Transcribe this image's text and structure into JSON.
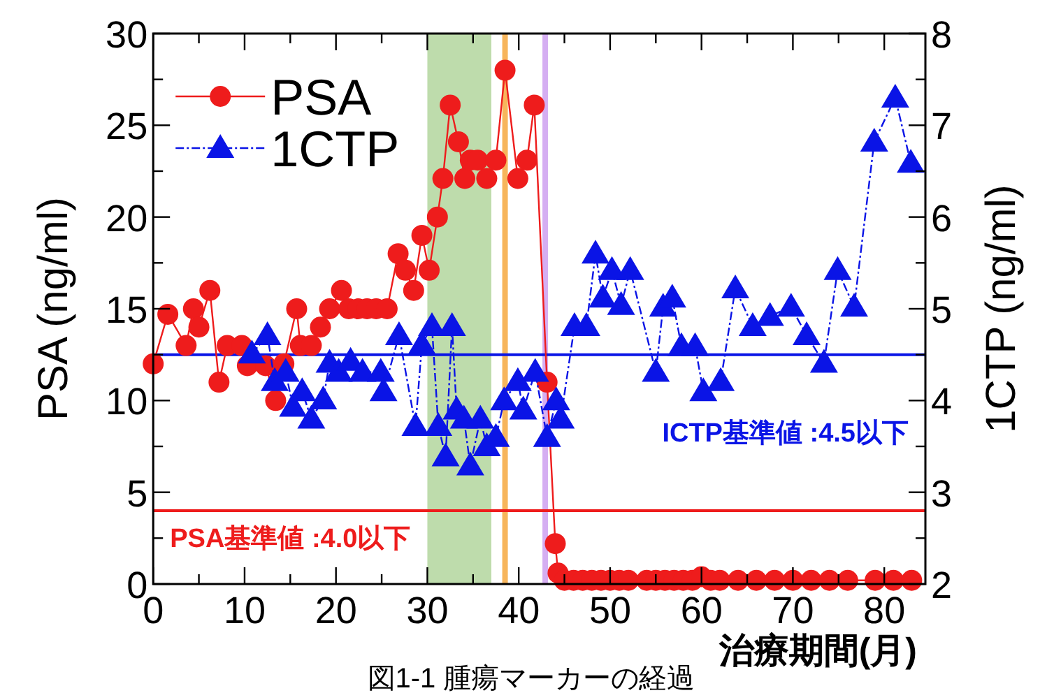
{
  "chart_data": {
    "type": "line",
    "xlabel": "治療期間(月)",
    "ylabel": "PSA (ng/ml)",
    "y2label": "1CTP (ng/ml)",
    "annotations": [
      "図1-1 腫瘍マーカーの経過"
    ],
    "xlim": [
      0,
      84.5
    ],
    "xticks": [
      0,
      {
        "value": 5,
        "label": null
      },
      10,
      {
        "value": 15,
        "label": null
      },
      20,
      {
        "value": 25,
        "label": null
      },
      30,
      {
        "value": 35,
        "label": null
      },
      40,
      {
        "value": 45,
        "label": null
      },
      50,
      {
        "value": 55,
        "label": null
      },
      60,
      {
        "value": 65,
        "label": null
      },
      70,
      {
        "value": 75,
        "label": null
      },
      80
    ],
    "ylim": [
      0,
      30
    ],
    "yticks": [
      0,
      {
        "value": 2.5,
        "label": null
      },
      5,
      {
        "value": 7.5,
        "label": null
      },
      10,
      {
        "value": 12.5,
        "label": null
      },
      15,
      {
        "value": 17.5,
        "label": null
      },
      20,
      {
        "value": 22.5,
        "label": null
      },
      25,
      {
        "value": 27.5,
        "label": null
      },
      30
    ],
    "y2lim": [
      2,
      8
    ],
    "y2ticks": [
      2,
      {
        "value": 2.5,
        "label": null
      },
      3,
      {
        "value": 3.5,
        "label": null
      },
      4,
      {
        "value": 4.5,
        "label": null
      },
      5,
      {
        "value": 5.5,
        "label": null
      },
      6,
      {
        "value": 6.5,
        "label": null
      },
      7,
      {
        "value": 7.5,
        "label": null
      },
      8
    ],
    "legend": "top left",
    "series": [
      {
        "name": "PSA",
        "color": "#ee1c1c",
        "marker": "circle",
        "line_style": "solid",
        "x": [
          0,
          1.6,
          3.6,
          4.4,
          5,
          6.2,
          7.2,
          8.1,
          9.7,
          10.3,
          12.3,
          13.4,
          14.3,
          15.7,
          16.1,
          17.3,
          18.3,
          19.3,
          20.6,
          21.4,
          22.4,
          23.4,
          24.4,
          25.6,
          26.8,
          27.6,
          28.5,
          29.4,
          30.2,
          31.1,
          31.7,
          32.5,
          33.4,
          34.1,
          34.7,
          35.5,
          36.5,
          37.5,
          38.5,
          39.9,
          40.9,
          41.7,
          43.1,
          44,
          44.3,
          45,
          46,
          47,
          48,
          49,
          50,
          51,
          52,
          54,
          55,
          56,
          57,
          58,
          59,
          60,
          61,
          62,
          64,
          66,
          68,
          70,
          72,
          74,
          76,
          79,
          81,
          83
        ],
        "values": [
          12,
          14.7,
          13,
          15,
          14,
          16,
          11,
          13,
          13,
          11.9,
          11.9,
          10,
          12,
          15,
          13,
          13,
          14,
          15,
          16,
          15,
          15,
          15,
          15,
          15,
          18,
          17.1,
          16,
          19,
          17.1,
          20,
          22.1,
          26.1,
          24.1,
          22.1,
          23.1,
          23.1,
          22.1,
          23.1,
          28,
          22.1,
          23.1,
          26.1,
          11,
          2.2,
          0.6,
          0.2,
          0.2,
          0.2,
          0.2,
          0.2,
          0.2,
          0.2,
          0.2,
          0.2,
          0.2,
          0.2,
          0.2,
          0.2,
          0.2,
          0.4,
          0.2,
          0.2,
          0.2,
          0.2,
          0.2,
          0.2,
          0.2,
          0.2,
          0.2,
          0.2,
          0.2,
          0.2
        ]
      },
      {
        "name": "1CTP",
        "color": "#0a14e6",
        "marker": "triangle",
        "line_style": "dashed",
        "axis": "y2",
        "x": [
          10.8,
          12.5,
          13.3,
          14.5,
          15.3,
          16.3,
          17.3,
          18.6,
          19.3,
          20.3,
          21.6,
          22.9,
          24.9,
          25.2,
          26.9,
          28.7,
          29.4,
          30.5,
          31.2,
          32,
          32.7,
          33.2,
          34,
          34.7,
          35.8,
          36.5,
          37.5,
          38.4,
          39.9,
          40.5,
          41.8,
          43.1,
          44.1,
          44.6,
          46.1,
          47.4,
          48.4,
          49.2,
          50.2,
          51.2,
          52.2,
          55,
          55.8,
          56.8,
          57.8,
          59.3,
          60.2,
          62.1,
          63.7,
          65.6,
          67.5,
          69.8,
          71.5,
          73.4,
          74.9,
          76.7,
          78.9,
          81.2,
          82.9
        ],
        "values": [
          4.51,
          4.71,
          4.21,
          4.31,
          3.93,
          4.1,
          3.8,
          4.01,
          4.41,
          4.31,
          4.43,
          4.31,
          4.31,
          4.1,
          4.71,
          3.72,
          4.61,
          4.81,
          3.72,
          3.39,
          4.81,
          3.9,
          3.8,
          3.29,
          3.8,
          3.5,
          3.6,
          4,
          4.21,
          3.9,
          4.31,
          3.6,
          4,
          3.8,
          4.81,
          4.81,
          5.6,
          5.12,
          5.42,
          5.04,
          5.42,
          4.31,
          5.02,
          5.12,
          4.59,
          4.59,
          4.1,
          4.21,
          5.22,
          4.81,
          4.92,
          5.02,
          4.71,
          4.41,
          5.42,
          5.02,
          6.82,
          7.3,
          6.59
        ]
      }
    ],
    "bands": [
      {
        "axis": "x",
        "from": 30,
        "to": 37,
        "color": "#b3d69e"
      }
    ],
    "ref_lines": [
      {
        "axis": "x",
        "value": 38.5,
        "color": "#f7b55c"
      },
      {
        "axis": "x",
        "value": 42.9,
        "color": "#d5aef2"
      },
      {
        "axis": "y",
        "value": 4,
        "label": "PSA基準値 :4.0以下",
        "color": "#ee1c1c"
      },
      {
        "axis": "y2",
        "value": 4.5,
        "label": "ICTP基準値 :4.5以下",
        "color": "#0a14e6"
      }
    ]
  }
}
